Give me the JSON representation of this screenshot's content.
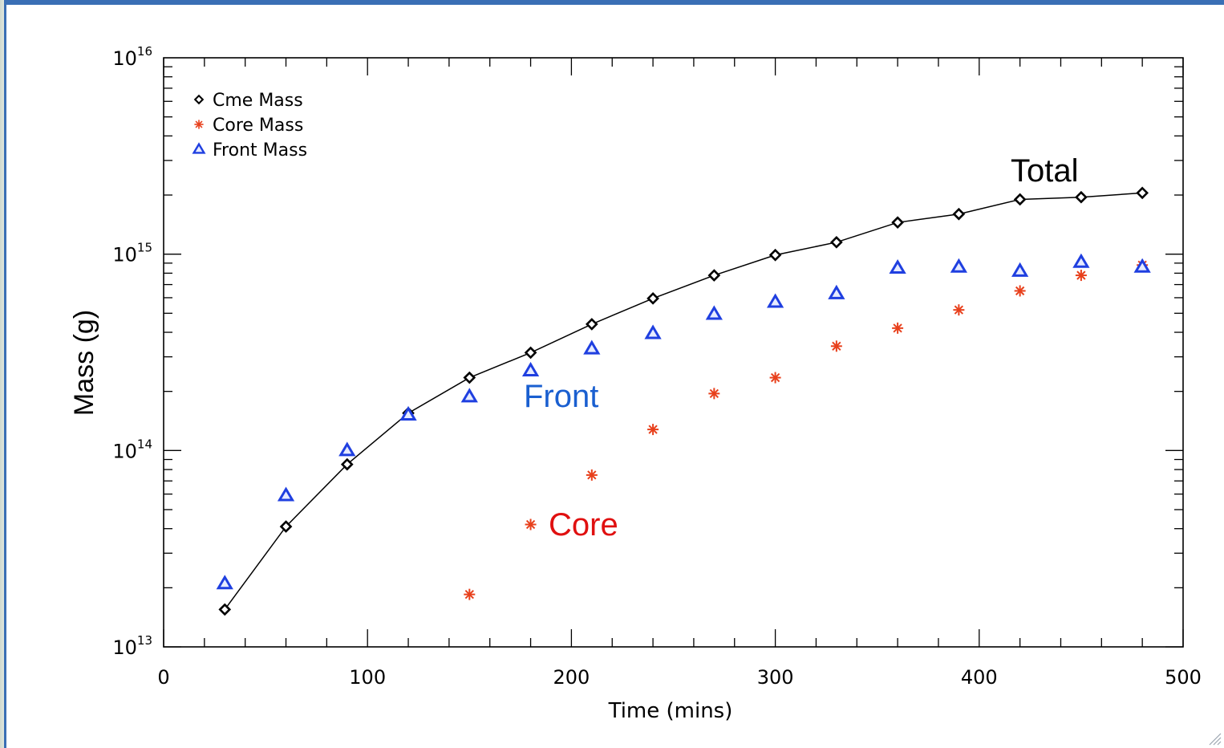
{
  "chart_data": {
    "type": "scatter",
    "xlabel": "Time (mins)",
    "ylabel": "Mass (g)",
    "xlim": [
      0,
      500
    ],
    "ylim": [
      10000000000000.0,
      1e+16
    ],
    "yscale": "log",
    "grid": false,
    "legend_position": "top-left",
    "x_ticks": [
      "0",
      "100",
      "200",
      "300",
      "400",
      "500"
    ],
    "y_ticks": [
      {
        "base": "10",
        "exp": "13",
        "value": 10000000000000.0
      },
      {
        "base": "10",
        "exp": "14",
        "value": 100000000000000.0
      },
      {
        "base": "10",
        "exp": "15",
        "value": 1000000000000000.0
      },
      {
        "base": "10",
        "exp": "16",
        "value": 1e+16
      }
    ],
    "legend": [
      {
        "label": "Cme Mass",
        "marker": "diamond",
        "color": "#000000"
      },
      {
        "label": "Core Mass",
        "marker": "asterisk",
        "color": "#e8401c"
      },
      {
        "label": "Front Mass",
        "marker": "triangle",
        "color": "#1f3fe0"
      }
    ],
    "annotations": [
      {
        "text": "Total",
        "color": "#000000"
      },
      {
        "text": "Front",
        "color": "#1a5fd0"
      },
      {
        "text": "Core",
        "color": "#e01010"
      }
    ],
    "series": [
      {
        "name": "Cme Mass",
        "marker": "diamond",
        "line": true,
        "color": "#000000",
        "x": [
          30,
          60,
          90,
          120,
          150,
          180,
          210,
          240,
          270,
          300,
          330,
          360,
          390,
          420,
          450,
          480
        ],
        "y": [
          15500000000000.0,
          41000000000000.0,
          85000000000000.0,
          155000000000000.0,
          235000000000000.0,
          315000000000000.0,
          440000000000000.0,
          595000000000000.0,
          780000000000000.0,
          990000000000000.0,
          1150000000000000.0,
          1450000000000000.0,
          1600000000000000.0,
          1900000000000000.0,
          1950000000000000.0,
          2050000000000000.0
        ]
      },
      {
        "name": "Core Mass",
        "marker": "asterisk",
        "line": false,
        "color": "#e8401c",
        "x": [
          150,
          180,
          210,
          240,
          270,
          300,
          330,
          360,
          390,
          420,
          450,
          480
        ],
        "y": [
          18500000000000.0,
          42000000000000.0,
          75000000000000.0,
          128000000000000.0,
          195000000000000.0,
          235000000000000.0,
          340000000000000.0,
          420000000000000.0,
          520000000000000.0,
          650000000000000.0,
          780000000000000.0,
          880000000000000.0
        ]
      },
      {
        "name": "Front Mass",
        "marker": "triangle",
        "line": false,
        "color": "#1f3fe0",
        "x": [
          30,
          60,
          90,
          120,
          150,
          180,
          210,
          240,
          270,
          300,
          330,
          360,
          390,
          420,
          450,
          480
        ],
        "y": [
          21000000000000.0,
          59000000000000.0,
          100000000000000.0,
          152000000000000.0,
          188000000000000.0,
          255000000000000.0,
          330000000000000.0,
          395000000000000.0,
          495000000000000.0,
          570000000000000.0,
          630000000000000.0,
          850000000000000.0,
          860000000000000.0,
          820000000000000.0,
          910000000000000.0,
          860000000000000.0
        ]
      }
    ]
  }
}
